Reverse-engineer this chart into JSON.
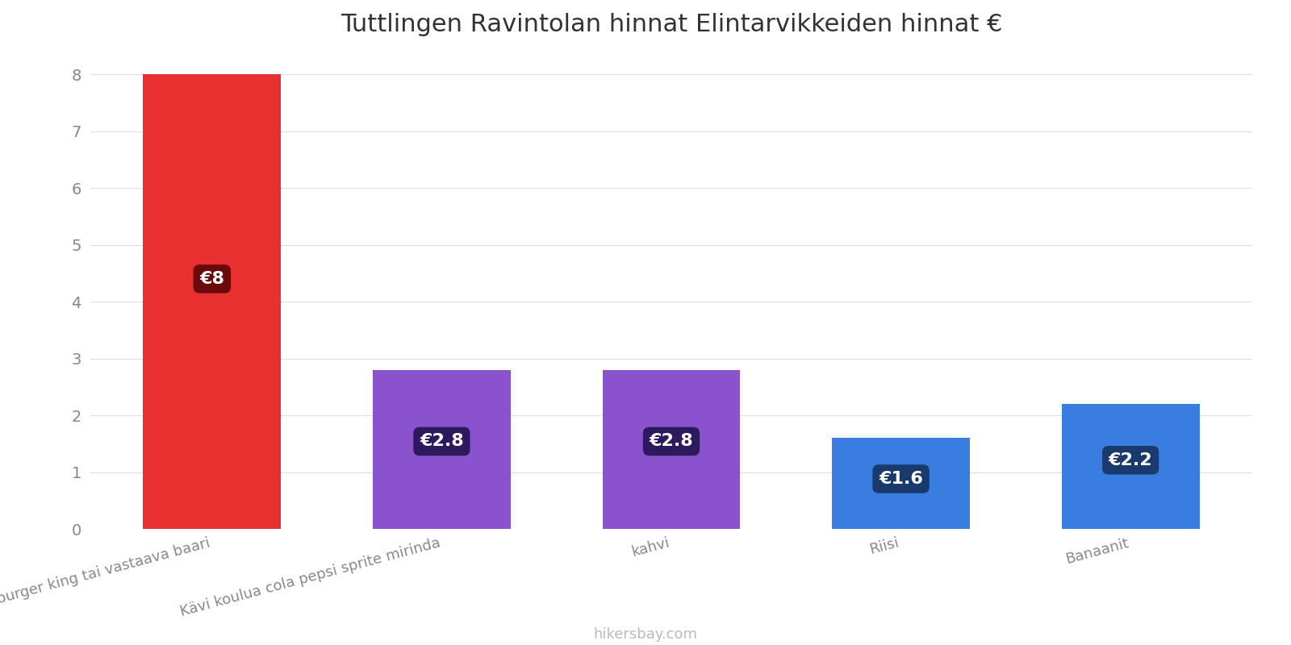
{
  "title": "Tuttlingen Ravintolan hinnat Elintarvikkeiden hinnat €",
  "categories": [
    "mac burger king tai vastaava baari",
    "Kävi koulua cola pepsi sprite mirinda",
    "kahvi",
    "Riisi",
    "Banaanit"
  ],
  "values": [
    8.0,
    2.8,
    2.8,
    1.6,
    2.2
  ],
  "bar_colors": [
    "#e83030",
    "#8a52cc",
    "#8a52cc",
    "#3a7de0",
    "#3a7de0"
  ],
  "label_bg_colors": [
    "#6b0a0a",
    "#2d1a5e",
    "#2d1a5e",
    "#1a3a6e",
    "#1a3a6e"
  ],
  "labels": [
    "€8",
    "€2.8",
    "€2.8",
    "€1.6",
    "€2.2"
  ],
  "ylim": [
    0,
    8.4
  ],
  "yticks": [
    0,
    1,
    2,
    3,
    4,
    5,
    6,
    7,
    8
  ],
  "background_color": "#ffffff",
  "grid_color": "#dddddd",
  "title_fontsize": 22,
  "tick_fontsize": 14,
  "label_fontsize": 16,
  "xlabel_fontsize": 13,
  "footer_text": "hikersbay.com",
  "footer_color": "#bbbbbb"
}
